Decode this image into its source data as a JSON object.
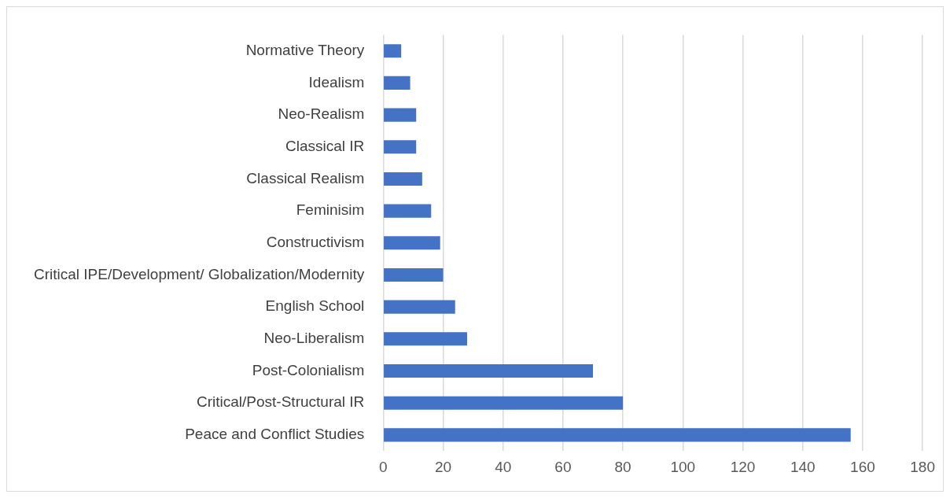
{
  "chart_data": {
    "type": "bar",
    "orientation": "horizontal",
    "categories": [
      "Normative Theory",
      "Idealism",
      "Neo-Realism",
      "Classical IR",
      "Classical Realism",
      "Feminisim",
      "Constructivism",
      "Critical IPE/Development/ Globalization/Modernity",
      "English School",
      "Neo-Liberalism",
      "Post-Colonialism",
      "Critical/Post-Structural IR",
      "Peace and Conflict Studies"
    ],
    "values": [
      6,
      9,
      11,
      11,
      13,
      16,
      19,
      20,
      24,
      28,
      70,
      80,
      156
    ],
    "color": "#4472c4",
    "xlim": [
      0,
      180
    ],
    "xticks": [
      0,
      20,
      40,
      60,
      80,
      100,
      120,
      140,
      160,
      180
    ],
    "grid": "x",
    "legend": false
  }
}
